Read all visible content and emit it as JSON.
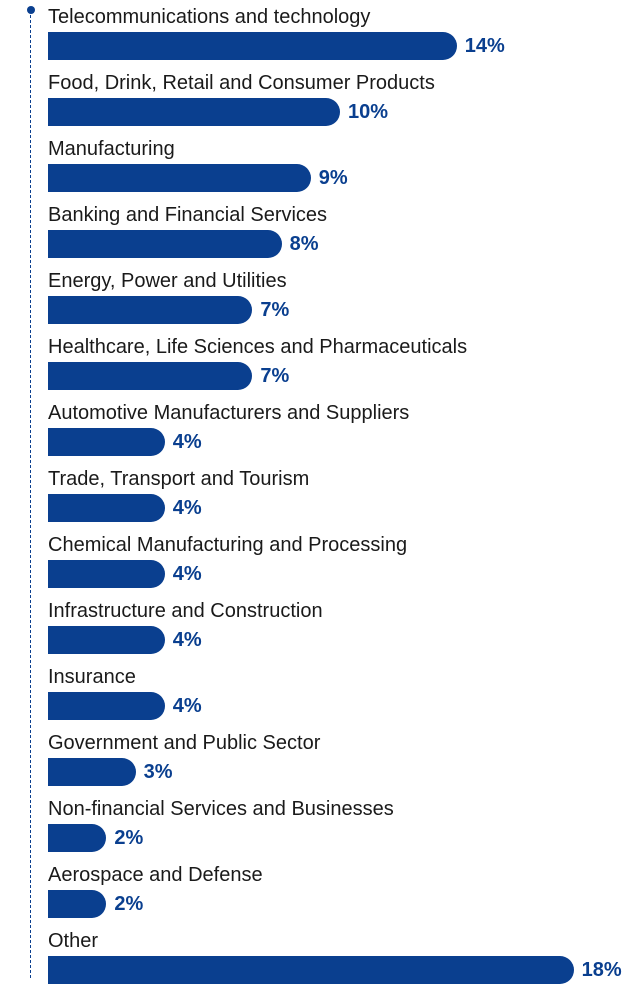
{
  "chart_data": {
    "type": "bar",
    "orientation": "horizontal",
    "categories": [
      "Telecommunications and technology",
      "Food, Drink, Retail and Consumer Products",
      "Manufacturing",
      "Banking and Financial Services",
      "Energy, Power and Utilities",
      "Healthcare, Life Sciences and Pharmaceuticals",
      "Automotive Manufacturers and Suppliers",
      "Trade, Transport and Tourism",
      "Chemical Manufacturing and Processing",
      "Infrastructure and Construction",
      "Insurance",
      "Government and Public Sector",
      "Non-financial Services and Businesses",
      "Aerospace and Defense",
      "Other"
    ],
    "values": [
      14,
      10,
      9,
      8,
      7,
      7,
      4,
      4,
      4,
      4,
      4,
      3,
      2,
      2,
      18
    ],
    "value_labels": [
      "14%",
      "10%",
      "9%",
      "8%",
      "7%",
      "7%",
      "4%",
      "4%",
      "4%",
      "4%",
      "4%",
      "3%",
      "2%",
      "2%",
      "18%"
    ],
    "unit": "%",
    "grid": false,
    "legend": "none"
  },
  "colors": {
    "bar": "#0a3f8f",
    "value_text": "#0a3f8f",
    "label_text": "#1a1a1a",
    "axis": "#0a3f8f"
  }
}
